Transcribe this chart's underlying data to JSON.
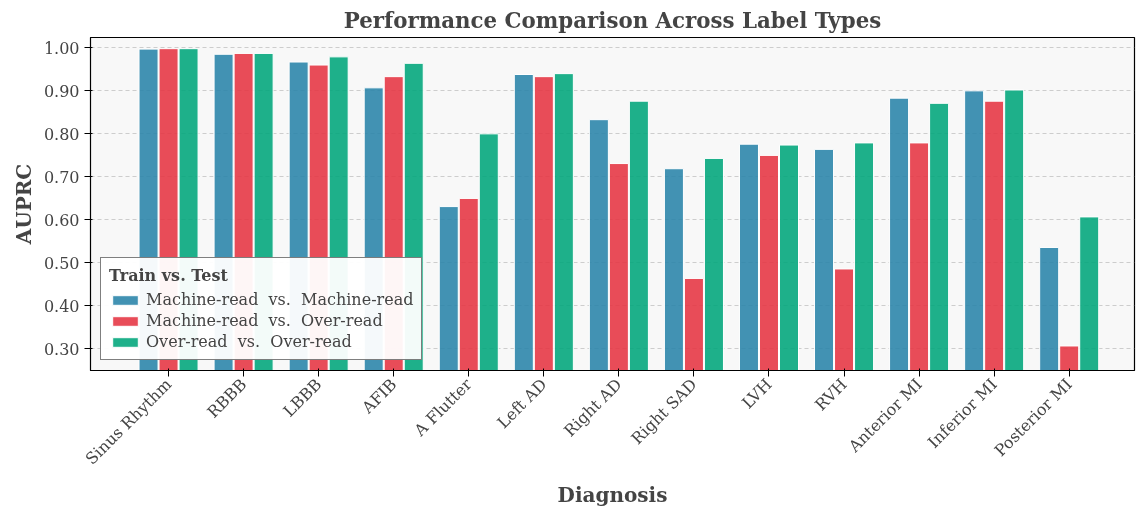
{
  "chart_data": {
    "type": "bar",
    "title": "Performance Comparison Across Label Types",
    "xlabel": "Diagnosis",
    "ylabel": "AUPRC",
    "legend_title": "Train vs. Test",
    "categories": [
      "Sinus Rhythm",
      "RBBB",
      "LBBB",
      "AFIB",
      "A Flutter",
      "Left AD",
      "Right AD",
      "Right SAD",
      "LVH",
      "RVH",
      "Anterior MI",
      "Inferior MI",
      "Posterior MI"
    ],
    "series": [
      {
        "name": "Machine-read  vs.  Machine-read",
        "color": "#2e86ab",
        "values": [
          0.997,
          0.985,
          0.967,
          0.907,
          0.631,
          0.938,
          0.833,
          0.719,
          0.776,
          0.764,
          0.883,
          0.9,
          0.536
        ]
      },
      {
        "name": "Machine-read  vs.  Over-read",
        "color": "#e63946",
        "values": [
          0.998,
          0.987,
          0.96,
          0.933,
          0.65,
          0.933,
          0.731,
          0.464,
          0.75,
          0.486,
          0.779,
          0.876,
          0.307
        ]
      },
      {
        "name": "Over-read  vs.  Over-read",
        "color": "#06a77d",
        "values": [
          0.998,
          0.987,
          0.979,
          0.964,
          0.8,
          0.94,
          0.876,
          0.743,
          0.774,
          0.779,
          0.871,
          0.902,
          0.607
        ]
      }
    ],
    "ylim": [
      0.25,
      1.024
    ],
    "yticks": [
      {
        "value": 0.3,
        "label": "0.30"
      },
      {
        "value": 0.4,
        "label": "0.40"
      },
      {
        "value": 0.5,
        "label": "0.50"
      },
      {
        "value": 0.6,
        "label": "0.60"
      },
      {
        "value": 0.7,
        "label": "0.70"
      },
      {
        "value": 0.8,
        "label": "0.80"
      },
      {
        "value": 0.9,
        "label": "0.90"
      },
      {
        "value": 1.0,
        "label": "1.00"
      }
    ],
    "grid": "y",
    "legend": "bottom left"
  }
}
